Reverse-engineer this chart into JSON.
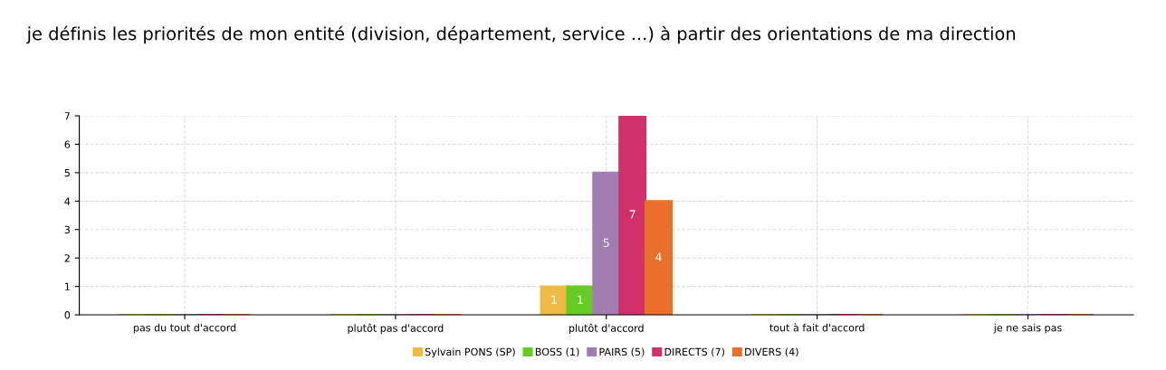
{
  "chart_data": {
    "type": "bar",
    "title": "je définis les priorités de mon entité (division, département, service ...) à partir des orientations de ma direction",
    "categories": [
      "pas du tout d'accord",
      "plutôt pas d'accord",
      "plutôt d'accord",
      "tout à fait d'accord",
      "je ne sais pas"
    ],
    "series": [
      {
        "name": "Sylvain PONS (SP)",
        "color": "#eebb44",
        "values": [
          0,
          0,
          1,
          0,
          0
        ],
        "value_labels": [
          null,
          null,
          "1",
          null,
          null
        ]
      },
      {
        "name": "BOSS (1)",
        "color": "#66cc22",
        "values": [
          0,
          0,
          1,
          0,
          0
        ],
        "value_labels": [
          null,
          null,
          "1",
          null,
          null
        ]
      },
      {
        "name": "PAIRS (5)",
        "color": "#a07fb0",
        "values": [
          0,
          0,
          5,
          0,
          0
        ],
        "value_labels": [
          null,
          null,
          "5",
          null,
          null
        ]
      },
      {
        "name": "DIRECTS (7)",
        "color": "#d0306a",
        "values": [
          0,
          0,
          7,
          0,
          0
        ],
        "value_labels": [
          null,
          null,
          "7",
          null,
          null
        ]
      },
      {
        "name": "DIVERS (4)",
        "color": "#e8702a",
        "values": [
          0,
          0,
          4,
          0,
          0
        ],
        "value_labels": [
          null,
          null,
          "4",
          null,
          null
        ]
      }
    ],
    "ylim": [
      0,
      7
    ],
    "yticks": [
      0,
      1,
      2,
      3,
      4,
      5,
      6,
      7
    ],
    "grid": true,
    "legend": "bottom"
  }
}
